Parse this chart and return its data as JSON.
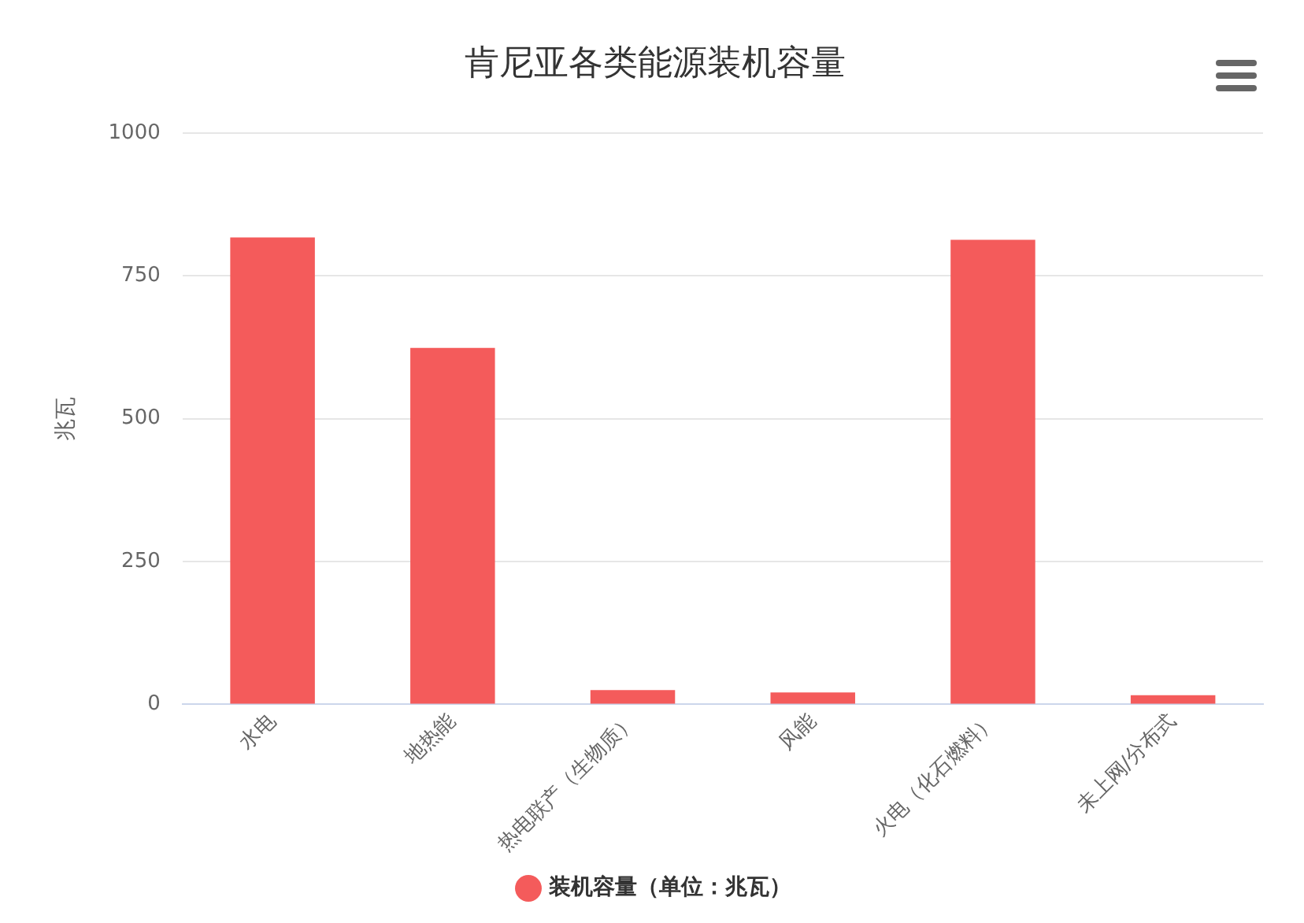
{
  "chart_data": {
    "type": "bar",
    "title": "肯尼亚各类能源装机容量",
    "ylabel": "兆瓦",
    "categories": [
      "水电",
      "地热能",
      "热电联产（生物质）",
      "风能",
      "火电（化石燃料）",
      "未上网/分布式"
    ],
    "series": [
      {
        "name": "装机容量（单位：兆瓦）",
        "color": "#f45b5b",
        "values": [
          817,
          624,
          25,
          21,
          813,
          16
        ]
      }
    ],
    "ylim": [
      0,
      1000
    ],
    "yticks": [
      0,
      250,
      500,
      750,
      1000
    ],
    "grid": "y",
    "legend": "bottom"
  }
}
